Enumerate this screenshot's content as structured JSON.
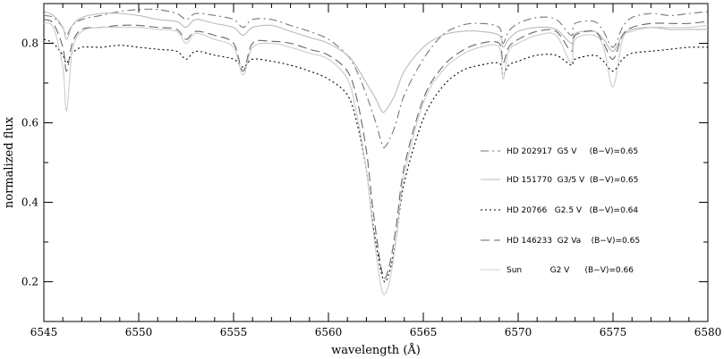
{
  "chart_data": {
    "type": "line",
    "title": "",
    "xlabel": "wavelength (Å)",
    "ylabel": "normalized flux",
    "xlim": [
      6545,
      6580
    ],
    "ylim": [
      0.1,
      0.9
    ],
    "xticks": [
      6545,
      6550,
      6555,
      6560,
      6565,
      6570,
      6575,
      6580
    ],
    "yticks": [
      0.2,
      0.4,
      0.6,
      0.8
    ],
    "xtick_labels": [
      "6545",
      "6550",
      "6555",
      "6560",
      "6565",
      "6570",
      "6575",
      "6580"
    ],
    "ytick_labels": [
      "0.2",
      "0.4",
      "0.6",
      "0.8"
    ],
    "grid": false,
    "legend_position": "center-right",
    "series": [
      {
        "name": "HD 202917  G5 V     (B−V)=0.65",
        "style": "dash-dot",
        "color": "#777777",
        "x": [
          6545,
          6545.5,
          6546,
          6546.2,
          6546.5,
          6547,
          6548,
          6549,
          6550,
          6551,
          6552,
          6552.5,
          6553,
          6554,
          6555,
          6555.5,
          6556,
          6557,
          6558,
          6559,
          6560,
          6561,
          6561.5,
          6562,
          6562.5,
          6562.8,
          6563,
          6563.5,
          6564,
          6565,
          6566,
          6567,
          6568,
          6569,
          6569.2,
          6569.5,
          6570,
          6571,
          6572,
          6572.8,
          6573,
          6574,
          6574.5,
          6575,
          6575.5,
          6576,
          6577,
          6578,
          6579,
          6580
        ],
        "y": [
          0.87,
          0.865,
          0.84,
          0.82,
          0.845,
          0.86,
          0.87,
          0.88,
          0.885,
          0.885,
          0.875,
          0.86,
          0.875,
          0.87,
          0.86,
          0.84,
          0.86,
          0.86,
          0.845,
          0.83,
          0.81,
          0.77,
          0.73,
          0.67,
          0.6,
          0.55,
          0.54,
          0.59,
          0.67,
          0.76,
          0.82,
          0.845,
          0.85,
          0.84,
          0.8,
          0.83,
          0.85,
          0.865,
          0.86,
          0.82,
          0.85,
          0.855,
          0.83,
          0.79,
          0.84,
          0.865,
          0.875,
          0.87,
          0.875,
          0.88
        ]
      },
      {
        "name": "HD 151770  G3/5 V  (B−V)=0.65",
        "style": "solid",
        "color": "#bbbbbb",
        "x": [
          6545,
          6545.5,
          6546,
          6546.2,
          6546.5,
          6547,
          6548,
          6549,
          6550,
          6551,
          6552,
          6552.5,
          6553,
          6554,
          6555,
          6555.5,
          6556,
          6557,
          6558,
          6559,
          6560,
          6561,
          6561.5,
          6562,
          6562.5,
          6562.8,
          6563,
          6563.5,
          6564,
          6565,
          6566,
          6567,
          6568,
          6569,
          6569.2,
          6569.5,
          6570,
          6571,
          6572,
          6572.8,
          6573,
          6574,
          6574.5,
          6575,
          6575.5,
          6576,
          6577,
          6578,
          6579,
          6580
        ],
        "y": [
          0.88,
          0.87,
          0.84,
          0.81,
          0.845,
          0.865,
          0.875,
          0.875,
          0.87,
          0.86,
          0.855,
          0.84,
          0.86,
          0.85,
          0.84,
          0.82,
          0.84,
          0.845,
          0.83,
          0.815,
          0.8,
          0.77,
          0.74,
          0.7,
          0.66,
          0.63,
          0.63,
          0.67,
          0.73,
          0.79,
          0.82,
          0.83,
          0.83,
          0.82,
          0.79,
          0.81,
          0.83,
          0.84,
          0.835,
          0.8,
          0.825,
          0.83,
          0.81,
          0.78,
          0.82,
          0.835,
          0.84,
          0.835,
          0.835,
          0.835
        ]
      },
      {
        "name": "HD 20766   G2.5 V   (B−V)=0.64",
        "style": "dotted",
        "color": "#000000",
        "x": [
          6545,
          6545.5,
          6546,
          6546.2,
          6546.5,
          6547,
          6548,
          6549,
          6550,
          6551,
          6552,
          6552.5,
          6553,
          6554,
          6555,
          6555.5,
          6556,
          6557,
          6558,
          6559,
          6560,
          6561,
          6561.5,
          6562,
          6562.3,
          6562.6,
          6562.8,
          6563,
          6563.3,
          6563.6,
          6564,
          6565,
          6566,
          6567,
          6568,
          6569,
          6569.2,
          6569.5,
          6570,
          6571,
          6572,
          6572.8,
          6573,
          6574,
          6574.5,
          6575,
          6575.5,
          6576,
          6577,
          6578,
          6579,
          6580
        ],
        "y": [
          0.81,
          0.8,
          0.77,
          0.75,
          0.775,
          0.79,
          0.79,
          0.795,
          0.79,
          0.785,
          0.78,
          0.76,
          0.78,
          0.77,
          0.76,
          0.74,
          0.76,
          0.755,
          0.745,
          0.73,
          0.71,
          0.67,
          0.6,
          0.48,
          0.36,
          0.27,
          0.22,
          0.2,
          0.24,
          0.32,
          0.45,
          0.61,
          0.69,
          0.73,
          0.745,
          0.75,
          0.72,
          0.745,
          0.755,
          0.77,
          0.77,
          0.745,
          0.76,
          0.77,
          0.755,
          0.73,
          0.76,
          0.775,
          0.78,
          0.785,
          0.79,
          0.79
        ]
      },
      {
        "name": "HD 146233  G2 Va    (B−V)=0.65",
        "style": "dashed",
        "color": "#666666",
        "x": [
          6545,
          6545.5,
          6546,
          6546.2,
          6546.5,
          6547,
          6548,
          6549,
          6550,
          6551,
          6552,
          6552.5,
          6553,
          6554,
          6555,
          6555.5,
          6556,
          6557,
          6558,
          6559,
          6560,
          6561,
          6561.5,
          6562,
          6562.3,
          6562.6,
          6562.8,
          6563,
          6563.3,
          6563.6,
          6564,
          6565,
          6566,
          6567,
          6568,
          6569,
          6569.2,
          6569.5,
          6570,
          6571,
          6572,
          6572.8,
          6573,
          6574,
          6574.5,
          6575,
          6575.5,
          6576,
          6577,
          6578,
          6579,
          6580
        ],
        "y": [
          0.86,
          0.85,
          0.79,
          0.73,
          0.8,
          0.835,
          0.84,
          0.845,
          0.845,
          0.84,
          0.835,
          0.81,
          0.83,
          0.82,
          0.8,
          0.73,
          0.8,
          0.805,
          0.8,
          0.785,
          0.77,
          0.73,
          0.66,
          0.53,
          0.4,
          0.29,
          0.23,
          0.21,
          0.26,
          0.35,
          0.49,
          0.66,
          0.74,
          0.78,
          0.8,
          0.8,
          0.75,
          0.79,
          0.81,
          0.83,
          0.83,
          0.78,
          0.82,
          0.83,
          0.8,
          0.76,
          0.82,
          0.84,
          0.85,
          0.85,
          0.85,
          0.855
        ]
      },
      {
        "name": "Sun           G2 V      (B−V)=0.66",
        "style": "solid",
        "color": "#cccccc",
        "x": [
          6545,
          6545.5,
          6546,
          6546.2,
          6546.5,
          6547,
          6548,
          6549,
          6550,
          6551,
          6552,
          6552.5,
          6553,
          6554,
          6555,
          6555.5,
          6556,
          6557,
          6558,
          6559,
          6560,
          6561,
          6561.5,
          6562,
          6562.3,
          6562.6,
          6562.8,
          6563,
          6563.3,
          6563.6,
          6564,
          6565,
          6566,
          6567,
          6568,
          6569,
          6569.2,
          6569.5,
          6570,
          6571,
          6572,
          6572.8,
          6573,
          6574,
          6574.5,
          6575,
          6575.5,
          6576,
          6577,
          6578,
          6579,
          6580
        ],
        "y": [
          0.85,
          0.84,
          0.74,
          0.63,
          0.78,
          0.83,
          0.84,
          0.84,
          0.84,
          0.835,
          0.83,
          0.8,
          0.825,
          0.81,
          0.79,
          0.72,
          0.79,
          0.8,
          0.79,
          0.775,
          0.76,
          0.71,
          0.62,
          0.48,
          0.35,
          0.24,
          0.18,
          0.17,
          0.22,
          0.32,
          0.47,
          0.65,
          0.73,
          0.77,
          0.79,
          0.79,
          0.71,
          0.78,
          0.8,
          0.82,
          0.82,
          0.75,
          0.81,
          0.82,
          0.79,
          0.69,
          0.81,
          0.83,
          0.84,
          0.84,
          0.84,
          0.845
        ]
      }
    ]
  }
}
